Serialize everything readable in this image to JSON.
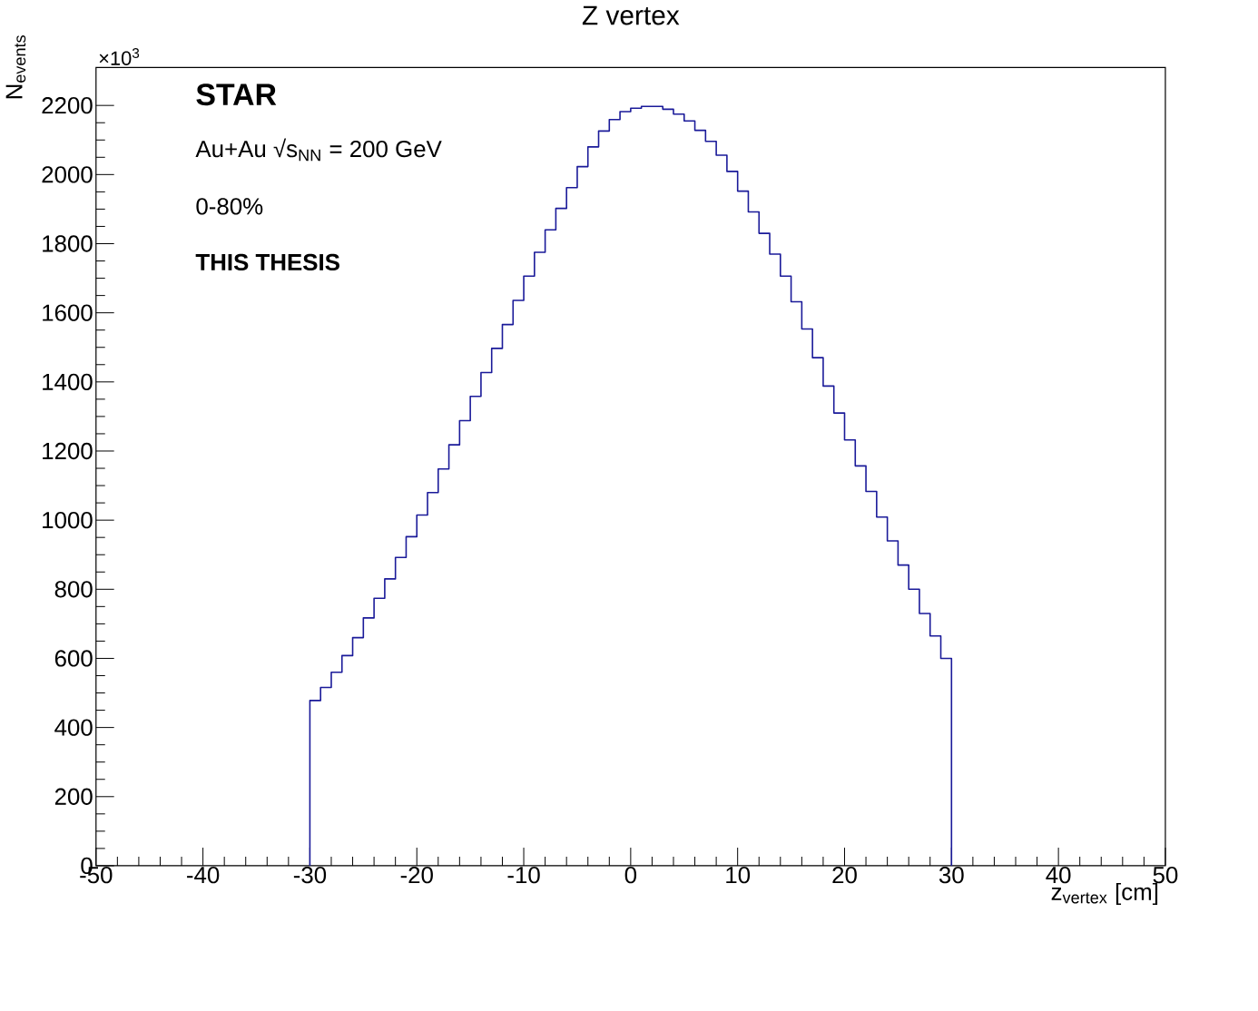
{
  "chart_data": {
    "type": "histogram",
    "title": "Z vertex",
    "xlabel": "z$_{vertex}$ [cm]",
    "ylabel": "N$_{events}$",
    "annotations": [
      "×10$^{3}$",
      "STAR",
      "Au+Au √s$_{NN}$ = 200 GeV",
      "0-80%",
      "THIS THESIS"
    ],
    "bins": [
      -30,
      -29,
      -28,
      -27,
      -26,
      -25,
      -24,
      -23,
      -22,
      -21,
      -20,
      -19,
      -18,
      -17,
      -16,
      -15,
      -14,
      -13,
      -12,
      -11,
      -10,
      -9,
      -8,
      -7,
      -6,
      -5,
      -4,
      -3,
      -2,
      -1,
      0,
      1,
      2,
      3,
      4,
      5,
      6,
      7,
      8,
      9,
      10,
      11,
      12,
      13,
      14,
      15,
      16,
      17,
      18,
      19,
      20,
      21,
      22,
      23,
      24,
      25,
      26,
      27,
      28,
      29,
      30
    ],
    "values": [
      478,
      516,
      560,
      608,
      660,
      717,
      774,
      830,
      892,
      952,
      1015,
      1080,
      1148,
      1218,
      1288,
      1358,
      1427,
      1497,
      1566,
      1636,
      1706,
      1775,
      1840,
      1902,
      1962,
      2023,
      2080,
      2126,
      2159,
      2182,
      2192,
      2197,
      2197,
      2189,
      2175,
      2155,
      2128,
      2096,
      2056,
      2009,
      1952,
      1892,
      1830,
      1770,
      1706,
      1632,
      1553,
      1470,
      1388,
      1310,
      1232,
      1157,
      1083,
      1009,
      940,
      870,
      800,
      730,
      665,
      600
    ],
    "color": "#1a1a99",
    "xlim": [
      -50,
      50
    ],
    "ylim": [
      0,
      2310
    ],
    "xticks": [
      -50,
      -40,
      -30,
      -20,
      -10,
      0,
      10,
      20,
      30,
      40,
      50
    ],
    "yticks": [
      0,
      200,
      400,
      600,
      800,
      1000,
      1200,
      1400,
      1600,
      1800,
      2000,
      2200
    ]
  }
}
